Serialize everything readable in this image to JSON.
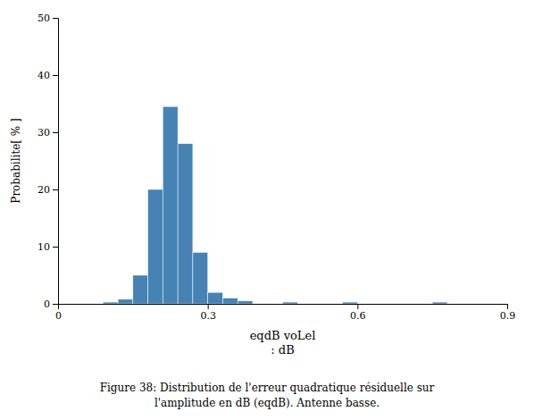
{
  "chart_data": {
    "type": "histogram",
    "xlabel": "eqdB voLel\n: dB",
    "ylabel": "Probabilite[ % ]",
    "caption": "Figure 38: Distribution de l'erreur quadratique résiduelle sur\nl'amplitude en dB (eqdB). Antenne basse.",
    "bins": [
      0.0,
      0.03,
      0.06,
      0.09,
      0.12,
      0.15,
      0.18,
      0.21,
      0.24,
      0.27,
      0.3,
      0.33,
      0.36,
      0.39,
      0.42,
      0.45,
      0.48,
      0.51,
      0.54,
      0.57,
      0.6,
      0.63,
      0.66,
      0.69,
      0.72,
      0.75,
      0.78,
      0.81,
      0.84,
      0.87,
      0.9
    ],
    "values": [
      0.0,
      0.0,
      0.0,
      0.3,
      0.8,
      5.0,
      20.0,
      34.5,
      28.0,
      9.0,
      2.0,
      1.0,
      0.5,
      0.0,
      0.0,
      0.3,
      0.0,
      0.0,
      0.0,
      0.3,
      0.0,
      0.0,
      0.0,
      0.0,
      0.0,
      0.3,
      0.0,
      0.0,
      0.0,
      0.0
    ],
    "xlim": [
      0,
      0.9
    ],
    "ylim": [
      0,
      50
    ],
    "xticks": [
      0,
      0.3,
      0.6,
      0.9
    ],
    "yticks": [
      0,
      10,
      20,
      30,
      40,
      50
    ]
  }
}
